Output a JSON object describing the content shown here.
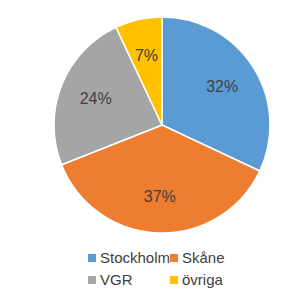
{
  "chart_data": {
    "type": "pie",
    "categories": [
      "Stockholm",
      "Skåne",
      "VGR",
      "övriga"
    ],
    "values": [
      32,
      37,
      24,
      7
    ],
    "value_labels": [
      "32%",
      "37%",
      "24%",
      "7%"
    ],
    "colors": [
      "#5b9bd5",
      "#ed7d31",
      "#a5a5a5",
      "#ffc000"
    ],
    "data_labels": true,
    "legend": "bottom"
  }
}
